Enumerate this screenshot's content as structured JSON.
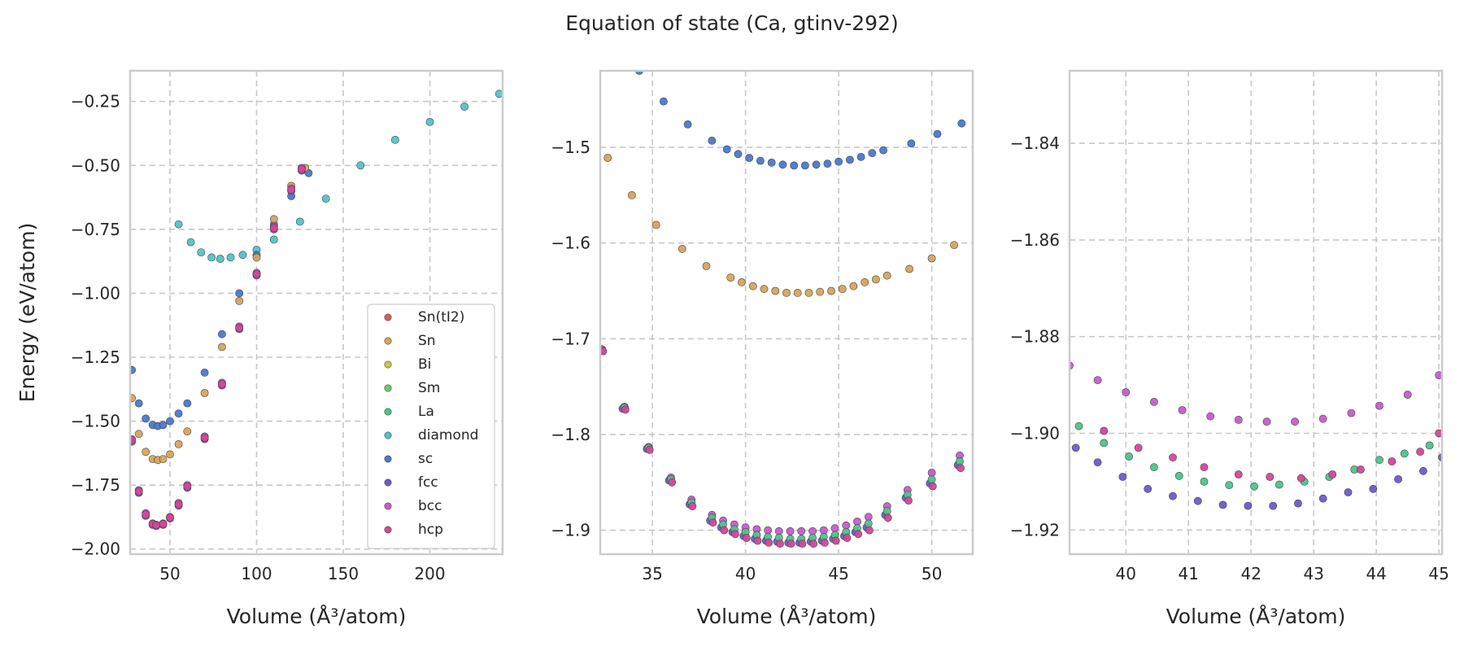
{
  "title": "Equation of state (Ca, gtinv-292)",
  "colors": {
    "Sn(tI2)": "#d65f5f",
    "Sn": "#d8a35a",
    "Bi": "#c7c94a",
    "Sm": "#6acc64",
    "La": "#4cc48a",
    "diamond": "#52c3c8",
    "sc": "#4878d0",
    "fcc": "#6a5ad0",
    "bcc": "#c85ad0",
    "hcp": "#d6459a"
  },
  "chart_data": [
    {
      "type": "scatter",
      "xlabel": "Volume (Å³/atom)",
      "ylabel": "Energy (eV/atom)",
      "xlim": [
        27,
        242
      ],
      "ylim": [
        -2.02,
        -0.13
      ],
      "xticks": [
        50,
        100,
        150,
        200
      ],
      "yticks": [
        -2.0,
        -1.75,
        -1.5,
        -1.25,
        -1.0,
        -0.75,
        -0.5,
        -0.25
      ],
      "grid": true,
      "legend": {
        "placement": "lower-right",
        "entries": [
          "Sn(tI2)",
          "Sn",
          "Bi",
          "Sm",
          "La",
          "diamond",
          "sc",
          "fcc",
          "bcc",
          "hcp"
        ]
      },
      "series": [
        {
          "name": "diamond",
          "x": [
            55,
            62,
            68,
            74,
            79,
            85,
            92,
            100,
            110,
            125,
            140,
            160,
            180,
            200,
            220,
            240
          ],
          "y": [
            -0.73,
            -0.8,
            -0.84,
            -0.86,
            -0.865,
            -0.86,
            -0.85,
            -0.83,
            -0.79,
            -0.72,
            -0.63,
            -0.5,
            -0.4,
            -0.33,
            -0.27,
            -0.22
          ]
        },
        {
          "name": "sc",
          "x": [
            28,
            32,
            36,
            40,
            43,
            46,
            50,
            55,
            60,
            70,
            80,
            90,
            100,
            110,
            120,
            130
          ],
          "y": [
            -1.3,
            -1.43,
            -1.49,
            -1.515,
            -1.519,
            -1.515,
            -1.5,
            -1.47,
            -1.43,
            -1.31,
            -1.16,
            -1.0,
            -0.85,
            -0.73,
            -0.62,
            -0.53
          ]
        },
        {
          "name": "Sn",
          "x": [
            28,
            32,
            36,
            40,
            43,
            46,
            50,
            55,
            60,
            70,
            80,
            90,
            100,
            110,
            120,
            128
          ],
          "y": [
            -1.41,
            -1.55,
            -1.62,
            -1.648,
            -1.652,
            -1.648,
            -1.63,
            -1.59,
            -1.54,
            -1.39,
            -1.21,
            -1.03,
            -0.86,
            -0.71,
            -0.58,
            -0.51
          ]
        },
        {
          "name": "fcc",
          "x": [
            28,
            32,
            36,
            40,
            42,
            46,
            50,
            55,
            60,
            70,
            80,
            90,
            100,
            110,
            120,
            126
          ],
          "y": [
            -1.58,
            -1.78,
            -1.87,
            -1.905,
            -1.91,
            -1.905,
            -1.88,
            -1.83,
            -1.76,
            -1.57,
            -1.36,
            -1.14,
            -0.93,
            -0.75,
            -0.6,
            -0.52
          ]
        },
        {
          "name": "bcc",
          "x": [
            28,
            32,
            36,
            40,
            42,
            46,
            50,
            55,
            60,
            70,
            80,
            90,
            100,
            110,
            120,
            126
          ],
          "y": [
            -1.57,
            -1.77,
            -1.86,
            -1.9,
            -1.905,
            -1.9,
            -1.875,
            -1.82,
            -1.75,
            -1.56,
            -1.35,
            -1.13,
            -0.92,
            -0.74,
            -0.59,
            -0.51
          ]
        },
        {
          "name": "hcp",
          "x": [
            28,
            32,
            36,
            40,
            42,
            46,
            50,
            55,
            60,
            70,
            80,
            90,
            100,
            110,
            120,
            126
          ],
          "y": [
            -1.575,
            -1.775,
            -1.865,
            -1.902,
            -1.907,
            -1.902,
            -1.877,
            -1.825,
            -1.755,
            -1.565,
            -1.355,
            -1.135,
            -0.925,
            -0.745,
            -0.595,
            -0.515
          ]
        }
      ]
    },
    {
      "type": "scatter",
      "xlabel": "Volume (Å³/atom)",
      "ylabel": "",
      "xlim": [
        32.2,
        52.2
      ],
      "ylim": [
        -1.925,
        -1.42
      ],
      "xticks": [
        35,
        40,
        45,
        50
      ],
      "yticks": [
        -1.9,
        -1.8,
        -1.7,
        -1.6,
        -1.5
      ],
      "grid": true,
      "series": [
        {
          "name": "sc",
          "x": [
            34.3,
            35.6,
            36.9,
            38.2,
            39.0,
            39.6,
            40.2,
            40.8,
            41.4,
            42.0,
            42.6,
            43.2,
            43.8,
            44.4,
            45.0,
            45.6,
            46.2,
            46.8,
            47.4,
            48.9,
            50.3,
            51.6
          ],
          "y": [
            -1.42,
            -1.452,
            -1.476,
            -1.493,
            -1.502,
            -1.507,
            -1.511,
            -1.514,
            -1.516,
            -1.518,
            -1.519,
            -1.519,
            -1.518,
            -1.517,
            -1.515,
            -1.513,
            -1.51,
            -1.506,
            -1.503,
            -1.496,
            -1.486,
            -1.475
          ]
        },
        {
          "name": "Sn",
          "x": [
            32.6,
            33.9,
            35.2,
            36.6,
            37.9,
            39.2,
            39.8,
            40.4,
            41.0,
            41.6,
            42.2,
            42.8,
            43.4,
            44.0,
            44.6,
            45.2,
            45.8,
            46.4,
            47.0,
            47.6,
            48.8,
            50.0,
            51.2
          ],
          "y": [
            -1.511,
            -1.55,
            -1.581,
            -1.606,
            -1.624,
            -1.636,
            -1.641,
            -1.645,
            -1.648,
            -1.65,
            -1.652,
            -1.652,
            -1.652,
            -1.651,
            -1.65,
            -1.648,
            -1.645,
            -1.641,
            -1.638,
            -1.634,
            -1.627,
            -1.616,
            -1.602
          ]
        },
        {
          "name": "fcc",
          "x": [
            32.2,
            33.4,
            34.7,
            35.9,
            37.0,
            38.1,
            38.7,
            39.3,
            39.9,
            40.5,
            41.1,
            41.7,
            42.3,
            42.9,
            43.5,
            44.1,
            44.7,
            45.3,
            45.9,
            46.5,
            47.5,
            48.6,
            49.9,
            51.4
          ],
          "y": [
            -1.712,
            -1.773,
            -1.815,
            -1.848,
            -1.873,
            -1.89,
            -1.897,
            -1.902,
            -1.906,
            -1.909,
            -1.911,
            -1.912,
            -1.913,
            -1.913,
            -1.912,
            -1.911,
            -1.909,
            -1.906,
            -1.902,
            -1.897,
            -1.884,
            -1.866,
            -1.851,
            -1.832
          ]
        },
        {
          "name": "bcc",
          "x": [
            32.3,
            33.5,
            34.8,
            36.0,
            37.1,
            38.2,
            38.8,
            39.4,
            40.0,
            40.6,
            41.2,
            41.8,
            42.4,
            43.0,
            43.6,
            44.2,
            44.8,
            45.4,
            46.0,
            46.6,
            47.6,
            48.7,
            50.0,
            51.5
          ],
          "y": [
            -1.711,
            -1.771,
            -1.813,
            -1.845,
            -1.868,
            -1.884,
            -1.89,
            -1.894,
            -1.897,
            -1.899,
            -1.9,
            -1.901,
            -1.901,
            -1.901,
            -1.901,
            -1.9,
            -1.898,
            -1.895,
            -1.891,
            -1.886,
            -1.875,
            -1.858,
            -1.84,
            -1.822
          ]
        },
        {
          "name": "La",
          "x": [
            32.3,
            33.5,
            34.8,
            36.0,
            37.1,
            38.2,
            38.8,
            39.4,
            40.0,
            40.6,
            41.2,
            41.8,
            42.4,
            43.0,
            43.6,
            44.2,
            44.8,
            45.4,
            46.0,
            46.6,
            47.6,
            48.7,
            50.0,
            51.5
          ],
          "y": [
            -1.712,
            -1.772,
            -1.814,
            -1.847,
            -1.871,
            -1.887,
            -1.894,
            -1.899,
            -1.902,
            -1.905,
            -1.907,
            -1.908,
            -1.909,
            -1.909,
            -1.908,
            -1.907,
            -1.905,
            -1.902,
            -1.898,
            -1.893,
            -1.88,
            -1.863,
            -1.847,
            -1.828
          ]
        },
        {
          "name": "hcp",
          "x": [
            32.35,
            33.55,
            34.85,
            36.05,
            37.15,
            38.25,
            38.85,
            39.45,
            40.05,
            40.65,
            41.25,
            41.85,
            42.45,
            43.05,
            43.65,
            44.25,
            44.85,
            45.45,
            46.05,
            46.65,
            47.65,
            48.75,
            50.05,
            51.55
          ],
          "y": [
            -1.713,
            -1.774,
            -1.816,
            -1.85,
            -1.875,
            -1.892,
            -1.9,
            -1.904,
            -1.908,
            -1.911,
            -1.913,
            -1.914,
            -1.914,
            -1.914,
            -1.914,
            -1.913,
            -1.911,
            -1.908,
            -1.904,
            -1.9,
            -1.887,
            -1.869,
            -1.854,
            -1.835
          ]
        }
      ]
    },
    {
      "type": "scatter",
      "xlabel": "Volume (Å³/atom)",
      "ylabel": "",
      "xlim": [
        39.1,
        45.05
      ],
      "ylim": [
        -1.925,
        -1.825
      ],
      "xticks": [
        40,
        41,
        42,
        43,
        44,
        45
      ],
      "yticks": [
        -1.92,
        -1.9,
        -1.88,
        -1.86,
        -1.84
      ],
      "grid": true,
      "series": [
        {
          "name": "fcc",
          "x": [
            39.2,
            39.55,
            39.95,
            40.35,
            40.75,
            41.15,
            41.55,
            41.95,
            42.35,
            42.75,
            43.15,
            43.55,
            43.95,
            44.35,
            44.75,
            45.05
          ],
          "y": [
            -1.903,
            -1.906,
            -1.909,
            -1.9115,
            -1.913,
            -1.914,
            -1.9148,
            -1.915,
            -1.915,
            -1.9145,
            -1.9135,
            -1.9122,
            -1.9115,
            -1.9095,
            -1.9078,
            -1.905
          ]
        },
        {
          "name": "La",
          "x": [
            39.25,
            39.65,
            40.05,
            40.45,
            40.85,
            41.25,
            41.65,
            42.05,
            42.45,
            42.85,
            43.25,
            43.65,
            44.05,
            44.45,
            44.85
          ],
          "y": [
            -1.8985,
            -1.902,
            -1.9048,
            -1.907,
            -1.9088,
            -1.91,
            -1.9107,
            -1.911,
            -1.9106,
            -1.91,
            -1.909,
            -1.9075,
            -1.9055,
            -1.9042,
            -1.9025
          ]
        },
        {
          "name": "hcp",
          "x": [
            39.65,
            40.2,
            40.75,
            41.25,
            41.8,
            42.3,
            42.8,
            43.3,
            43.75,
            44.25,
            44.7,
            45.0
          ],
          "y": [
            -1.8995,
            -1.903,
            -1.905,
            -1.907,
            -1.9085,
            -1.909,
            -1.9093,
            -1.9085,
            -1.9075,
            -1.9058,
            -1.9038,
            -1.9
          ]
        },
        {
          "name": "bcc",
          "x": [
            39.1,
            39.55,
            40.0,
            40.45,
            40.9,
            41.35,
            41.8,
            42.25,
            42.7,
            43.15,
            43.6,
            44.05,
            44.5,
            45.0
          ],
          "y": [
            -1.886,
            -1.889,
            -1.8915,
            -1.8935,
            -1.8952,
            -1.8965,
            -1.8972,
            -1.8976,
            -1.8976,
            -1.897,
            -1.8958,
            -1.8943,
            -1.892,
            -1.888
          ]
        }
      ]
    }
  ]
}
